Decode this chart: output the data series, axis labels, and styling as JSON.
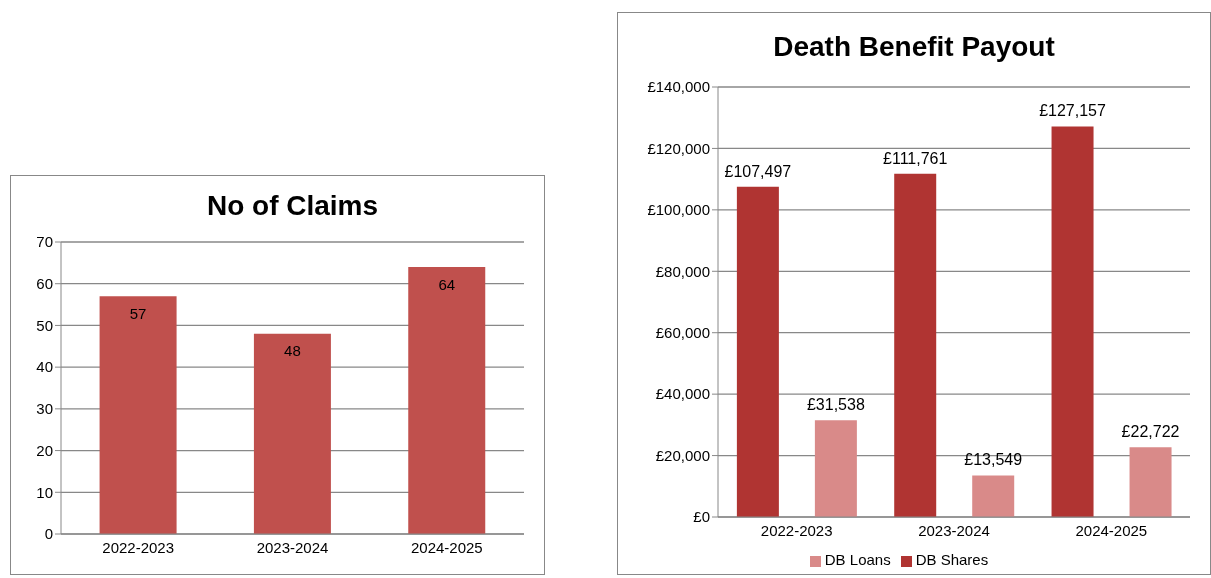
{
  "chart_data": [
    {
      "type": "bar",
      "title": "No of Claims",
      "categories": [
        "2022-2023",
        "2023-2024",
        "2024-2025"
      ],
      "values": [
        57,
        48,
        64
      ],
      "color": "#c0504d",
      "ylim": [
        0,
        70
      ],
      "yticks": [
        0,
        10,
        20,
        30,
        40,
        50,
        60,
        70
      ],
      "grid": "y",
      "data_labels": true,
      "legend": false
    },
    {
      "type": "bar",
      "title": "Death Benefit Payout",
      "categories": [
        "2022-2023",
        "2023-2024",
        "2024-2025"
      ],
      "series": [
        {
          "name": "DB Shares",
          "color": "#b03432",
          "values": [
            107497,
            111761,
            127157
          ],
          "value_labels": [
            "£107,497",
            "£111,761",
            "£127,157"
          ]
        },
        {
          "name": "DB Loans",
          "color": "#d98a89",
          "values": [
            31538,
            13549,
            22722
          ],
          "value_labels": [
            "£31,538",
            "£13,549",
            "£22,722"
          ]
        }
      ],
      "ylim": [
        0,
        140000
      ],
      "yticks": [
        {
          "value": 0,
          "label": "£0"
        },
        {
          "value": 20000,
          "label": "£20,000"
        },
        {
          "value": 40000,
          "label": "£40,000"
        },
        {
          "value": 60000,
          "label": "£60,000"
        },
        {
          "value": 80000,
          "label": "£80,000"
        },
        {
          "value": 100000,
          "label": "£100,000"
        },
        {
          "value": 120000,
          "label": "£120,000"
        },
        {
          "value": 140000,
          "label": "£140,000"
        }
      ],
      "grid": "y",
      "legend": "bottom"
    }
  ]
}
